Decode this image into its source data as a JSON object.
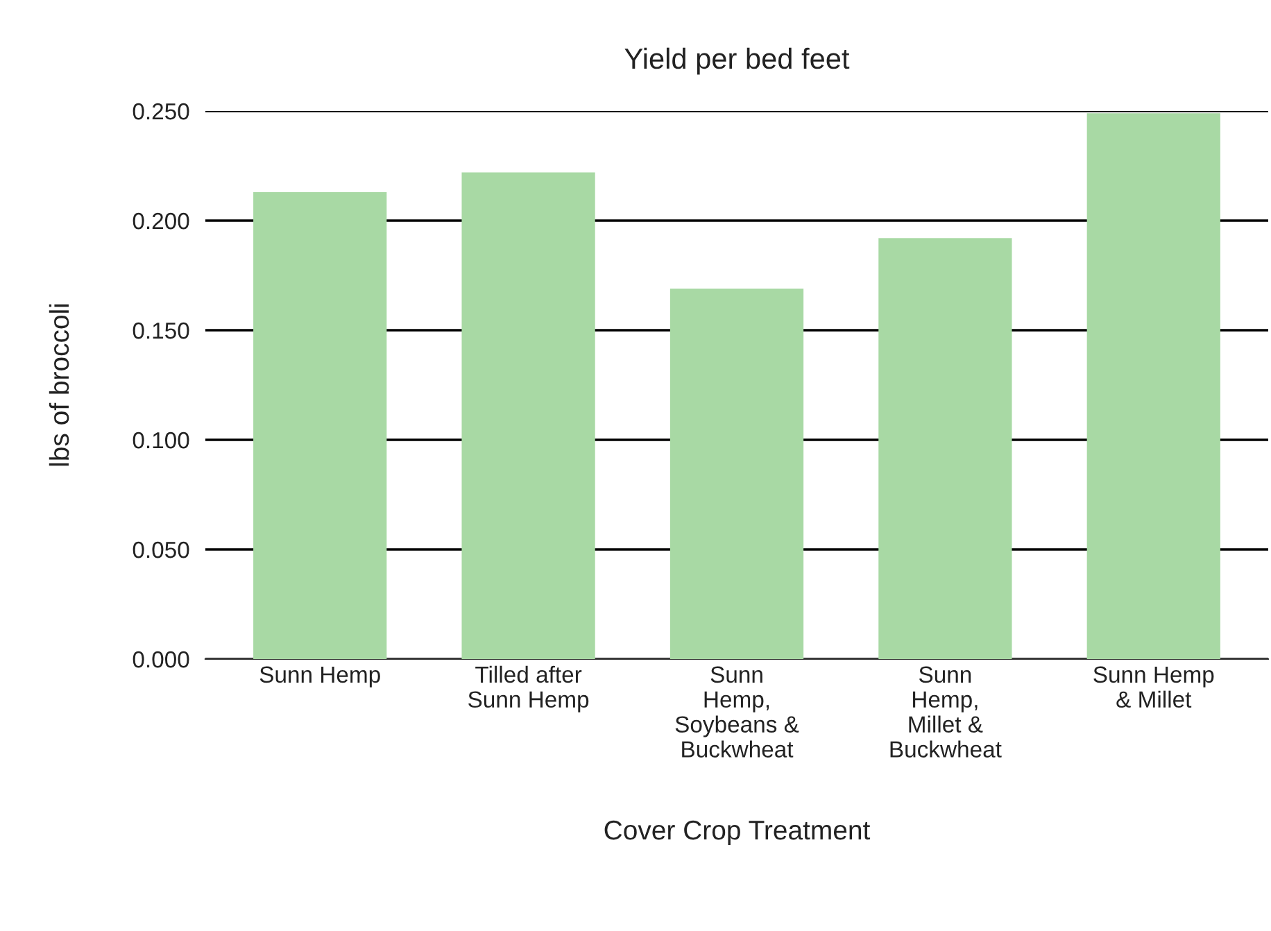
{
  "chart_data": {
    "type": "bar",
    "title": "Yield per bed feet",
    "xlabel": "Cover Crop Treatment",
    "ylabel": "lbs of broccoli",
    "categories": [
      "Sunn Hemp",
      "Tilled after\nSunn Hemp",
      "Sunn\nHemp,\nSoybeans &\nBuckwheat",
      "Sunn\nHemp,\nMillet &\nBuckwheat",
      "Sunn Hemp\n& Millet"
    ],
    "values": [
      0.213,
      0.222,
      0.169,
      0.192,
      0.249
    ],
    "color": "#a8d9a4",
    "ylim": [
      0,
      0.25
    ],
    "yticks": [
      {
        "value": 0,
        "label": "0.000"
      },
      {
        "value": 0.05,
        "label": "0.050"
      },
      {
        "value": 0.1,
        "label": "0.100"
      },
      {
        "value": 0.15,
        "label": "0.150"
      },
      {
        "value": 0.2,
        "label": "0.200"
      },
      {
        "value": 0.25,
        "label": "0.250"
      }
    ],
    "grid": "y"
  }
}
